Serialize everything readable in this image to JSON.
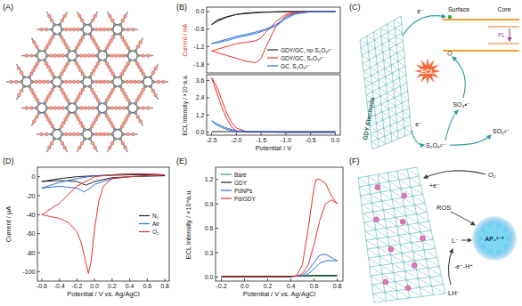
{
  "panel_labels": [
    "(A)",
    "(B)",
    "(C)",
    "(D)",
    "(E)",
    "(F)"
  ],
  "chart_data": [
    {
      "type": "line",
      "ylabel": "Current / mA",
      "xlim": [
        -2.6,
        0.1
      ],
      "ylim": [
        -2.1,
        0.15
      ],
      "yticks": [
        {
          "value": 0,
          "label": "0.0"
        },
        -0.6,
        -1.2,
        -1.8
      ],
      "tick_labels": "y",
      "legend": "lower right",
      "series": [
        {
          "name": "GDY/GC, no S₂O₈²⁻",
          "color": "#222222",
          "x": [
            0,
            -0.5,
            -1.0,
            -1.5,
            -1.8,
            -2.0,
            -2.2,
            -2.4,
            -2.5,
            -2.4,
            -2.2,
            -2.0,
            -1.5,
            -1.0,
            -0.5,
            0
          ],
          "values": [
            0,
            0,
            0,
            -0.02,
            -0.05,
            -0.1,
            -0.2,
            -0.35,
            -0.45,
            -0.3,
            -0.18,
            -0.1,
            -0.03,
            -0.01,
            0,
            0
          ]
        },
        {
          "name": "GDY/GC, S₂O₈²⁻",
          "color": "#e8302a",
          "x": [
            0,
            -0.5,
            -0.8,
            -1.0,
            -1.2,
            -1.4,
            -1.5,
            -1.6,
            -1.8,
            -2.0,
            -2.2,
            -2.4,
            -2.5,
            -2.4,
            -2.2,
            -2.0,
            -1.8,
            -1.6,
            -1.5,
            -1.4,
            -1.2,
            -1.0,
            -0.8,
            -0.5,
            0
          ],
          "values": [
            0,
            0,
            -0.02,
            -0.1,
            -0.35,
            -0.7,
            -0.9,
            -1.0,
            -1.05,
            -1.1,
            -1.2,
            -1.3,
            -1.35,
            -1.4,
            -1.5,
            -1.6,
            -1.7,
            -1.75,
            -1.6,
            -1.2,
            -0.5,
            -0.15,
            -0.03,
            0,
            0
          ]
        },
        {
          "name": "GC, S₂O₈²⁻",
          "color": "#2a6fd6",
          "x": [
            0,
            -0.5,
            -0.8,
            -1.0,
            -1.2,
            -1.4,
            -1.6,
            -1.8,
            -2.0,
            -2.2,
            -2.5,
            -2.2,
            -2.0,
            -1.6,
            -1.2,
            -1.0,
            -0.8,
            -0.5,
            0
          ],
          "values": [
            0,
            0,
            -0.05,
            -0.2,
            -0.45,
            -0.6,
            -0.7,
            -0.78,
            -0.85,
            -0.95,
            -1.1,
            -1.0,
            -0.9,
            -0.75,
            -0.5,
            -0.25,
            -0.08,
            -0.01,
            0
          ]
        }
      ]
    },
    {
      "type": "line",
      "xlabel": "Potential / V",
      "ylabel": "ECL Intensity / ×10⁴a.u.",
      "xlim": [
        -2.6,
        0.1
      ],
      "ylim": [
        -0.2,
        4.0
      ],
      "xticks": [
        -2.5,
        {
          "value": -2,
          "label": "-2.0"
        },
        -1.5,
        {
          "value": -1,
          "label": "-1.0"
        },
        -0.5,
        {
          "value": 0,
          "label": "0.0"
        }
      ],
      "yticks": [
        {
          "value": 0,
          "label": "0.0"
        },
        1.2,
        2.4,
        3.6
      ],
      "series": [
        {
          "color": "#222222",
          "x": [
            -2.5,
            -2.0,
            -1.5,
            -1.0,
            -0.5,
            0
          ],
          "values": [
            0.05,
            0.05,
            0.05,
            0.05,
            0.05,
            0.05
          ]
        },
        {
          "color": "#e8302a",
          "x": [
            0,
            -1.0,
            -1.8,
            -2.0,
            -2.1,
            -2.2,
            -2.3,
            -2.4,
            -2.5,
            -2.4,
            -2.3,
            -2.2,
            -2.1,
            -2.0,
            -1.8,
            -1.0,
            0
          ],
          "values": [
            0,
            0,
            0,
            0.1,
            0.4,
            1.0,
            1.8,
            2.8,
            3.8,
            3.2,
            2.3,
            1.4,
            0.7,
            0.3,
            0.05,
            0,
            0
          ]
        },
        {
          "color": "#2a6fd6",
          "x": [
            0,
            -1.0,
            -2.0,
            -2.2,
            -2.4,
            -2.5,
            -2.4,
            -2.2,
            -2.0,
            -1.0,
            0
          ],
          "values": [
            0,
            0,
            0.05,
            0.2,
            0.5,
            0.8,
            0.6,
            0.3,
            0.1,
            0,
            0
          ]
        }
      ]
    },
    {
      "type": "line",
      "xlabel": "Potential / V vs. Ag/AgCl",
      "ylabel": "Current / μA",
      "xlim": [
        -0.65,
        0.85
      ],
      "ylim": [
        -110,
        10
      ],
      "xticks": [
        -0.6,
        -0.4,
        -0.2,
        {
          "value": 0,
          "label": "0.0"
        },
        0.2,
        0.4,
        0.6,
        0.8
      ],
      "yticks": [
        0,
        -20,
        -40,
        -60,
        -80,
        -100
      ],
      "legend": "center right",
      "series": [
        {
          "name": "N₂",
          "color": "#222222",
          "x": [
            -0.6,
            -0.4,
            -0.2,
            -0.1,
            0,
            0.2,
            0.4,
            0.6,
            0.8,
            0.6,
            0.4,
            0.2,
            0,
            -0.2,
            -0.4,
            -0.6
          ],
          "values": [
            -5,
            -4,
            -5,
            -9,
            -5,
            -1,
            0,
            0.5,
            1,
            2,
            2,
            1.5,
            1,
            0,
            -2,
            -5
          ]
        },
        {
          "name": "Air",
          "color": "#2a6fd6",
          "x": [
            -0.6,
            -0.4,
            -0.2,
            -0.12,
            -0.05,
            0,
            0.2,
            0.4,
            0.6,
            0.8,
            0.6,
            0.4,
            0.2,
            0,
            -0.2,
            -0.4,
            -0.6
          ],
          "values": [
            -12,
            -10,
            -12,
            -16,
            -12,
            -8,
            -2,
            0,
            1,
            2,
            3,
            3,
            2,
            1,
            -2,
            -6,
            -12
          ]
        },
        {
          "name": "O₂",
          "color": "#e8302a",
          "x": [
            -0.6,
            -0.5,
            -0.4,
            -0.3,
            -0.2,
            -0.15,
            -0.1,
            -0.07,
            -0.04,
            0,
            0.05,
            0.1,
            0.2,
            0.4,
            0.6,
            0.8,
            0.6,
            0.4,
            0.2,
            0,
            -0.2,
            -0.4,
            -0.6
          ],
          "values": [
            -40,
            -42,
            -44,
            -48,
            -58,
            -70,
            -90,
            -102,
            -90,
            -55,
            -25,
            -10,
            -2,
            0,
            1,
            2,
            3,
            3,
            2,
            0,
            -10,
            -28,
            -40
          ]
        }
      ]
    },
    {
      "type": "line",
      "xlabel": "Potential / V vs. Ag/AgCl",
      "ylabel": "ECL Intensity / ×10⁴a.u.",
      "xlim": [
        -0.25,
        0.85
      ],
      "ylim": [
        -0.05,
        1.35
      ],
      "xticks": [
        -0.2,
        {
          "value": 0,
          "label": "0.0"
        },
        0.2,
        0.4,
        0.6,
        0.8
      ],
      "yticks": [
        {
          "value": 0,
          "label": "0.0"
        },
        0.3,
        0.6,
        0.9,
        1.2
      ],
      "legend": "upper left",
      "series": [
        {
          "name": "Bare",
          "color": "#1aa56a",
          "x": [
            -0.2,
            0.2,
            0.5,
            0.8
          ],
          "values": [
            0.01,
            0.01,
            0.01,
            0.01
          ]
        },
        {
          "name": "GDY",
          "color": "#222222",
          "x": [
            -0.2,
            0.4,
            0.6,
            0.8
          ],
          "values": [
            0.01,
            0.01,
            0.02,
            0.02
          ]
        },
        {
          "name": "PdNPs",
          "color": "#2a6fd6",
          "x": [
            -0.2,
            0.4,
            0.5,
            0.55,
            0.6,
            0.65,
            0.7,
            0.75,
            0.8,
            0.75,
            0.7,
            0.65,
            0.6,
            0.55,
            0.5
          ],
          "values": [
            0,
            0,
            0.02,
            0.08,
            0.18,
            0.27,
            0.28,
            0.24,
            0.2,
            0.2,
            0.2,
            0.17,
            0.1,
            0.04,
            0.01
          ]
        },
        {
          "name": "Pd/GDY",
          "color": "#e8302a",
          "x": [
            -0.2,
            0.4,
            0.45,
            0.5,
            0.55,
            0.6,
            0.62,
            0.65,
            0.7,
            0.75,
            0.8,
            0.78,
            0.75,
            0.7,
            0.65,
            0.6,
            0.55,
            0.5,
            0.45
          ],
          "values": [
            0,
            0,
            0.02,
            0.15,
            0.6,
            1.1,
            1.2,
            1.2,
            1.15,
            1.0,
            0.9,
            0.92,
            0.95,
            0.9,
            0.7,
            0.4,
            0.15,
            0.04,
            0.01
          ]
        }
      ]
    }
  ],
  "diagram_c": {
    "electrode_label": "GDY Electrode",
    "surface": "Surface",
    "core": "Core",
    "ecl": "ECL",
    "pl": "PL",
    "electron_top": "e⁻",
    "electron_bottom": "e⁻",
    "radical": "SO₄•⁻",
    "reactant": "S₂O₈²⁻",
    "product": "SO₄²⁻"
  },
  "diagram_f": {
    "oxygen": "O₂",
    "reduction": "+e⁻",
    "ros": "ROS",
    "anion": "L⁻",
    "oxidation": "-e⁻-H⁺",
    "luminol": "LH⁻",
    "excited": "AP₂²⁻*"
  }
}
